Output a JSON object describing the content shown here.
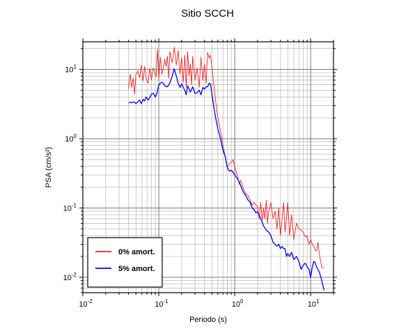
{
  "chart_data": {
    "type": "line",
    "title": "Sitio SCCH",
    "xlabel": "Periodo (s)",
    "ylabel": "PSA (cm/s²)",
    "x_scale": "log",
    "y_scale": "log",
    "xlim": [
      0.01,
      20
    ],
    "ylim": [
      0.006,
      25
    ],
    "grid": true,
    "legend_position": "bottom-left",
    "x_ticks": [
      {
        "base": "10",
        "exp": "-2"
      },
      {
        "base": "10",
        "exp": "-1"
      },
      {
        "base": "10",
        "exp": "0"
      },
      {
        "base": "10",
        "exp": "1"
      }
    ],
    "y_ticks": [
      {
        "base": "10",
        "exp": "-2"
      },
      {
        "base": "10",
        "exp": "-1"
      },
      {
        "base": "10",
        "exp": "0"
      },
      {
        "base": "10",
        "exp": "1"
      }
    ],
    "series": [
      {
        "name": "0% amort.",
        "color": "#ee2222",
        "x": [
          0.04,
          0.042,
          0.044,
          0.046,
          0.048,
          0.05,
          0.053,
          0.056,
          0.059,
          0.062,
          0.065,
          0.068,
          0.072,
          0.076,
          0.08,
          0.084,
          0.088,
          0.092,
          0.096,
          0.1,
          0.105,
          0.11,
          0.115,
          0.12,
          0.125,
          0.13,
          0.135,
          0.14,
          0.15,
          0.16,
          0.17,
          0.18,
          0.19,
          0.2,
          0.21,
          0.22,
          0.23,
          0.24,
          0.25,
          0.26,
          0.27,
          0.28,
          0.3,
          0.32,
          0.34,
          0.36,
          0.38,
          0.4,
          0.42,
          0.44,
          0.46,
          0.48,
          0.5,
          0.53,
          0.56,
          0.6,
          0.65,
          0.7,
          0.75,
          0.8,
          0.85,
          0.9,
          0.95,
          1.0,
          1.05,
          1.1,
          1.15,
          1.2,
          1.3,
          1.4,
          1.5,
          1.6,
          1.7,
          1.8,
          1.9,
          2.0,
          2.1,
          2.2,
          2.3,
          2.4,
          2.5,
          2.6,
          2.7,
          2.8,
          2.9,
          3.0,
          3.2,
          3.4,
          3.6,
          3.8,
          4.0,
          4.2,
          4.4,
          4.6,
          4.8,
          5.0,
          5.3,
          5.6,
          6.0,
          6.5,
          7.0,
          7.5,
          8.0,
          8.5,
          9.0,
          9.5,
          10.0,
          10.5,
          11.0,
          11.5,
          12.0,
          12.5,
          13.0,
          14.0,
          15.0
        ],
        "y": [
          5.2,
          8.5,
          5.5,
          7.5,
          4.4,
          8.4,
          9.5,
          7.6,
          11.5,
          6.8,
          11.0,
          7.5,
          6.3,
          10.4,
          7.0,
          10.5,
          9.3,
          7.8,
          19.5,
          7.3,
          15.0,
          8.5,
          10.5,
          14.0,
          11.0,
          15.5,
          7.4,
          18.0,
          12.5,
          21.0,
          11.5,
          18.5,
          8.5,
          15.0,
          6.5,
          16.0,
          5.5,
          18.0,
          8.0,
          12.0,
          6.0,
          15.5,
          7.0,
          10.5,
          5.5,
          15.0,
          7.0,
          12.0,
          6.3,
          17.5,
          14.5,
          16.0,
          11.0,
          6.0,
          3.5,
          2.0,
          1.3,
          0.82,
          0.55,
          0.38,
          0.44,
          0.45,
          0.5,
          0.4,
          0.33,
          0.28,
          0.22,
          0.25,
          0.19,
          0.16,
          0.15,
          0.13,
          0.11,
          0.12,
          0.11,
          0.105,
          0.07,
          0.12,
          0.067,
          0.1,
          0.07,
          0.13,
          0.06,
          0.09,
          0.1,
          0.12,
          0.07,
          0.09,
          0.05,
          0.1,
          0.04,
          0.07,
          0.12,
          0.045,
          0.07,
          0.12,
          0.04,
          0.08,
          0.035,
          0.06,
          0.05,
          0.048,
          0.045,
          0.038,
          0.04,
          0.03,
          0.035,
          0.03,
          0.028,
          0.025,
          0.024,
          0.032,
          0.022,
          0.014,
          0.0135
        ]
      },
      {
        "name": "5% amort.",
        "color": "#0000ee",
        "x": [
          0.04,
          0.042,
          0.044,
          0.046,
          0.048,
          0.05,
          0.053,
          0.056,
          0.059,
          0.062,
          0.065,
          0.068,
          0.072,
          0.076,
          0.08,
          0.085,
          0.09,
          0.095,
          0.1,
          0.105,
          0.11,
          0.115,
          0.12,
          0.13,
          0.14,
          0.15,
          0.16,
          0.17,
          0.18,
          0.19,
          0.2,
          0.21,
          0.22,
          0.23,
          0.24,
          0.25,
          0.26,
          0.28,
          0.3,
          0.32,
          0.34,
          0.36,
          0.38,
          0.4,
          0.42,
          0.44,
          0.46,
          0.48,
          0.5,
          0.53,
          0.56,
          0.6,
          0.65,
          0.7,
          0.75,
          0.8,
          0.85,
          0.9,
          0.95,
          1.0,
          1.1,
          1.2,
          1.3,
          1.4,
          1.5,
          1.6,
          1.7,
          1.8,
          1.9,
          2.0,
          2.2,
          2.4,
          2.6,
          2.8,
          3.0,
          3.2,
          3.4,
          3.6,
          3.8,
          4.0,
          4.2,
          4.4,
          4.6,
          4.8,
          5.0,
          5.3,
          5.6,
          6.0,
          6.5,
          7.0,
          7.5,
          8.0,
          8.5,
          9.0,
          9.5,
          10.0,
          10.5,
          11.0,
          11.5,
          12.0,
          13.0,
          14.0,
          15.0
        ],
        "y": [
          3.3,
          3.35,
          3.3,
          3.4,
          3.35,
          3.2,
          3.4,
          3.6,
          3.2,
          3.7,
          3.5,
          4.0,
          3.6,
          3.9,
          4.4,
          4.5,
          4.0,
          4.6,
          6.0,
          6.3,
          6.5,
          6.3,
          5.8,
          5.6,
          6.4,
          8.0,
          10.2,
          8.0,
          6.3,
          5.5,
          6.2,
          5.5,
          5.0,
          4.3,
          5.8,
          5.2,
          4.7,
          5.6,
          4.5,
          4.6,
          5.0,
          4.3,
          5.5,
          5.2,
          5.6,
          5.6,
          6.3,
          6.2,
          4.5,
          2.9,
          2.0,
          1.4,
          1.0,
          0.68,
          0.55,
          0.38,
          0.34,
          0.35,
          0.33,
          0.3,
          0.26,
          0.21,
          0.17,
          0.15,
          0.13,
          0.12,
          0.1,
          0.095,
          0.085,
          0.088,
          0.07,
          0.055,
          0.048,
          0.045,
          0.04,
          0.032,
          0.03,
          0.028,
          0.03,
          0.026,
          0.028,
          0.026,
          0.026,
          0.02,
          0.022,
          0.02,
          0.023,
          0.018,
          0.02,
          0.017,
          0.013,
          0.015,
          0.016,
          0.014,
          0.013,
          0.01,
          0.014,
          0.017,
          0.016,
          0.014,
          0.012,
          0.009,
          0.0065
        ]
      }
    ]
  }
}
